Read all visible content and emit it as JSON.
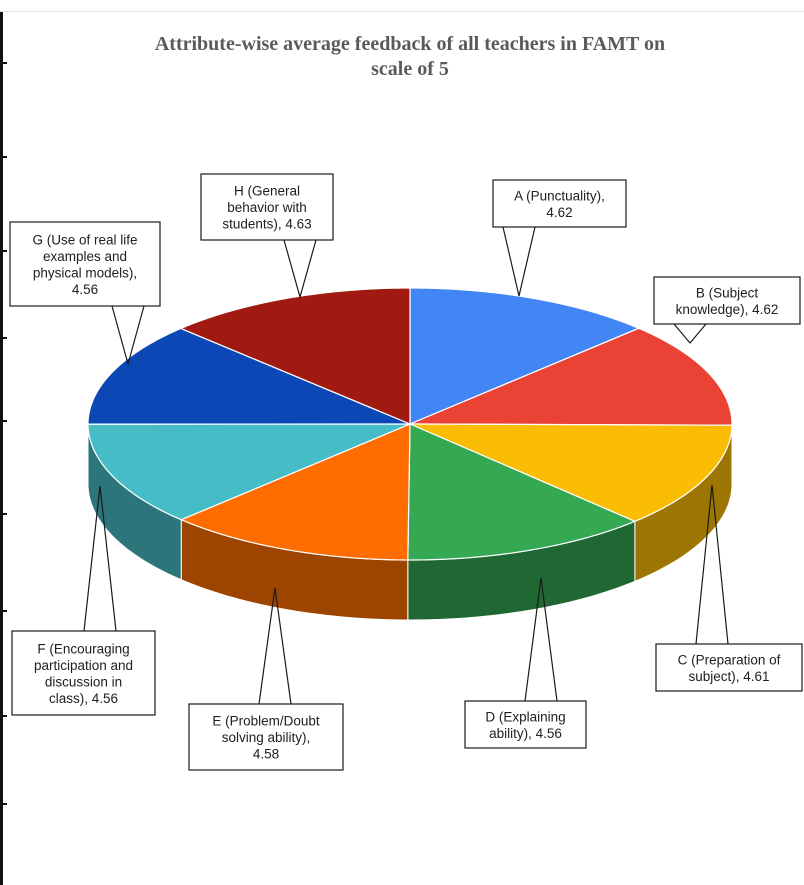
{
  "chart_data": {
    "type": "pie",
    "title": [
      "Attribute-wise average feedback of all teachers in FAMT on",
      "scale of 5"
    ],
    "categories": [
      "A (Punctuality)",
      "B (Subject knowledge)",
      "C (Preparation of subject)",
      "D (Explaining ability)",
      "E (Problem/Doubt solving ability)",
      "F (Encouraging participation and discussion in class)",
      "G (Use of real life examples and physical models)",
      "H (General behavior with students)"
    ],
    "values": [
      4.62,
      4.62,
      4.61,
      4.56,
      4.58,
      4.56,
      4.56,
      4.63
    ],
    "labels": [
      {
        "lines": [
          "A (Punctuality),",
          "4.62"
        ]
      },
      {
        "lines": [
          "B (Subject",
          "knowledge), 4.62"
        ]
      },
      {
        "lines": [
          "C (Preparation of",
          "subject), 4.61"
        ]
      },
      {
        "lines": [
          "D (Explaining",
          "ability), 4.56"
        ]
      },
      {
        "lines": [
          "E (Problem/Doubt",
          "solving ability),",
          "4.58"
        ]
      },
      {
        "lines": [
          "F (Encouraging",
          "participation and",
          "discussion in",
          "class), 4.56"
        ]
      },
      {
        "lines": [
          "G (Use of real life",
          "examples and",
          "physical models),",
          "4.56"
        ]
      },
      {
        "lines": [
          "H (General",
          "behavior with",
          "students), 4.63"
        ]
      }
    ],
    "colors": [
      "#4285f4",
      "#ea4335",
      "#fbbc04",
      "#34a853",
      "#ff6d01",
      "#46bdc6",
      "#0b47b5",
      "#a11a12"
    ]
  }
}
